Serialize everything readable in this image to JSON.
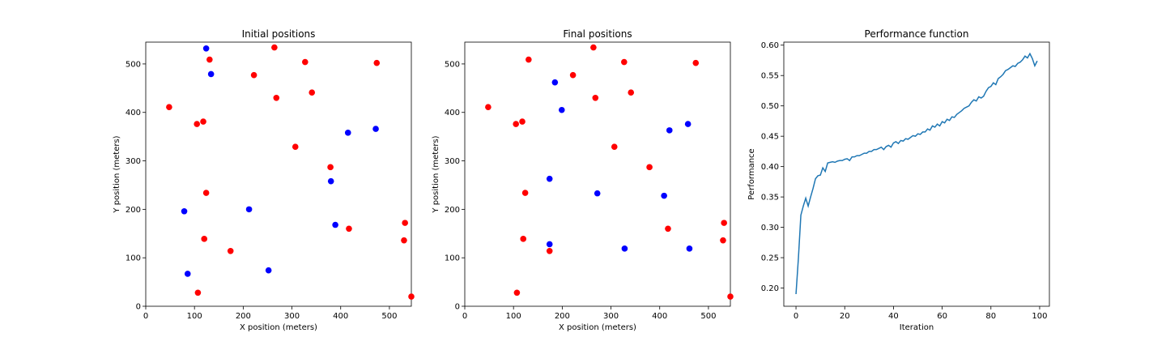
{
  "chart_data": [
    {
      "type": "scatter",
      "title": "Initial positions",
      "xlabel": "X position (meters)",
      "ylabel": "Y position (meters)",
      "xlim": [
        0,
        545
      ],
      "ylim": [
        0,
        545
      ],
      "xticks": [
        0,
        100,
        200,
        300,
        400,
        500
      ],
      "yticks": [
        0,
        100,
        200,
        300,
        400,
        500
      ],
      "grid": false,
      "series": [
        {
          "color": "#ff0000",
          "points": [
            [
              48,
              411
            ],
            [
              105,
              376
            ],
            [
              118,
              381
            ],
            [
              131,
              509
            ],
            [
              222,
              477
            ],
            [
              264,
              534
            ],
            [
              268,
              430
            ],
            [
              307,
              329
            ],
            [
              327,
              504
            ],
            [
              341,
              441
            ],
            [
              379,
              287
            ],
            [
              474,
              502
            ],
            [
              124,
              234
            ],
            [
              120,
              139
            ],
            [
              174,
              114
            ],
            [
              107,
              28
            ],
            [
              417,
              160
            ],
            [
              532,
              172
            ],
            [
              530,
              136
            ],
            [
              545,
              20
            ]
          ]
        },
        {
          "color": "#0000ff",
          "points": [
            [
              124,
              532
            ],
            [
              134,
              479
            ],
            [
              415,
              358
            ],
            [
              472,
              366
            ],
            [
              79,
              196
            ],
            [
              212,
              200
            ],
            [
              380,
              258
            ],
            [
              389,
              168
            ],
            [
              86,
              67
            ],
            [
              252,
              74
            ]
          ]
        }
      ]
    },
    {
      "type": "scatter",
      "title": "Final positions",
      "xlabel": "X position (meters)",
      "ylabel": "Y position (meters)",
      "xlim": [
        0,
        545
      ],
      "ylim": [
        0,
        545
      ],
      "xticks": [
        0,
        100,
        200,
        300,
        400,
        500
      ],
      "yticks": [
        0,
        100,
        200,
        300,
        400,
        500
      ],
      "grid": false,
      "series": [
        {
          "color": "#ff0000",
          "points": [
            [
              48,
              411
            ],
            [
              105,
              376
            ],
            [
              118,
              381
            ],
            [
              131,
              509
            ],
            [
              222,
              477
            ],
            [
              264,
              534
            ],
            [
              268,
              430
            ],
            [
              307,
              329
            ],
            [
              327,
              504
            ],
            [
              341,
              441
            ],
            [
              379,
              287
            ],
            [
              474,
              502
            ],
            [
              124,
              234
            ],
            [
              120,
              139
            ],
            [
              174,
              114
            ],
            [
              107,
              28
            ],
            [
              417,
              160
            ],
            [
              532,
              172
            ],
            [
              530,
              136
            ],
            [
              545,
              20
            ]
          ]
        },
        {
          "color": "#0000ff",
          "points": [
            [
              185,
              462
            ],
            [
              199,
              405
            ],
            [
              420,
              363
            ],
            [
              458,
              376
            ],
            [
              174,
              263
            ],
            [
              272,
              233
            ],
            [
              409,
              228
            ],
            [
              174,
              128
            ],
            [
              328,
              119
            ],
            [
              461,
              119
            ]
          ]
        }
      ]
    },
    {
      "type": "line",
      "title": "Performance function",
      "xlabel": "Iteration",
      "ylabel": "Performance",
      "xlim": [
        -5,
        104
      ],
      "ylim": [
        0.17,
        0.605
      ],
      "xticks": [
        0,
        20,
        40,
        60,
        80,
        100
      ],
      "yticks": [
        "0.20",
        "0.25",
        "0.30",
        "0.35",
        "0.40",
        "0.45",
        "0.50",
        "0.55",
        "0.60"
      ],
      "grid": false,
      "series": [
        {
          "color": "#1f77b4",
          "x": [
            0,
            1,
            2,
            3,
            4,
            5,
            6,
            7,
            8,
            9,
            10,
            11,
            12,
            13,
            14,
            15,
            16,
            17,
            18,
            19,
            20,
            21,
            22,
            23,
            24,
            25,
            26,
            27,
            28,
            29,
            30,
            31,
            32,
            33,
            34,
            35,
            36,
            37,
            38,
            39,
            40,
            41,
            42,
            43,
            44,
            45,
            46,
            47,
            48,
            49,
            50,
            51,
            52,
            53,
            54,
            55,
            56,
            57,
            58,
            59,
            60,
            61,
            62,
            63,
            64,
            65,
            66,
            67,
            68,
            69,
            70,
            71,
            72,
            73,
            74,
            75,
            76,
            77,
            78,
            79,
            80,
            81,
            82,
            83,
            84,
            85,
            86,
            87,
            88,
            89,
            90,
            91,
            92,
            93,
            94,
            95,
            96,
            97,
            98,
            99
          ],
          "y": [
            0.19,
            0.25,
            0.32,
            0.335,
            0.348,
            0.335,
            0.35,
            0.364,
            0.38,
            0.385,
            0.386,
            0.398,
            0.392,
            0.406,
            0.407,
            0.408,
            0.407,
            0.409,
            0.41,
            0.41,
            0.412,
            0.413,
            0.41,
            0.416,
            0.416,
            0.418,
            0.418,
            0.42,
            0.422,
            0.422,
            0.425,
            0.425,
            0.428,
            0.428,
            0.43,
            0.432,
            0.428,
            0.433,
            0.435,
            0.432,
            0.439,
            0.441,
            0.438,
            0.443,
            0.442,
            0.446,
            0.445,
            0.448,
            0.451,
            0.45,
            0.454,
            0.453,
            0.457,
            0.457,
            0.462,
            0.46,
            0.467,
            0.465,
            0.47,
            0.467,
            0.474,
            0.472,
            0.478,
            0.476,
            0.482,
            0.481,
            0.486,
            0.489,
            0.492,
            0.496,
            0.498,
            0.5,
            0.506,
            0.51,
            0.508,
            0.515,
            0.513,
            0.516,
            0.524,
            0.53,
            0.532,
            0.538,
            0.535,
            0.545,
            0.548,
            0.552,
            0.558,
            0.56,
            0.563,
            0.566,
            0.565,
            0.57,
            0.572,
            0.576,
            0.582,
            0.579,
            0.586,
            0.578,
            0.566,
            0.574
          ]
        }
      ]
    }
  ]
}
